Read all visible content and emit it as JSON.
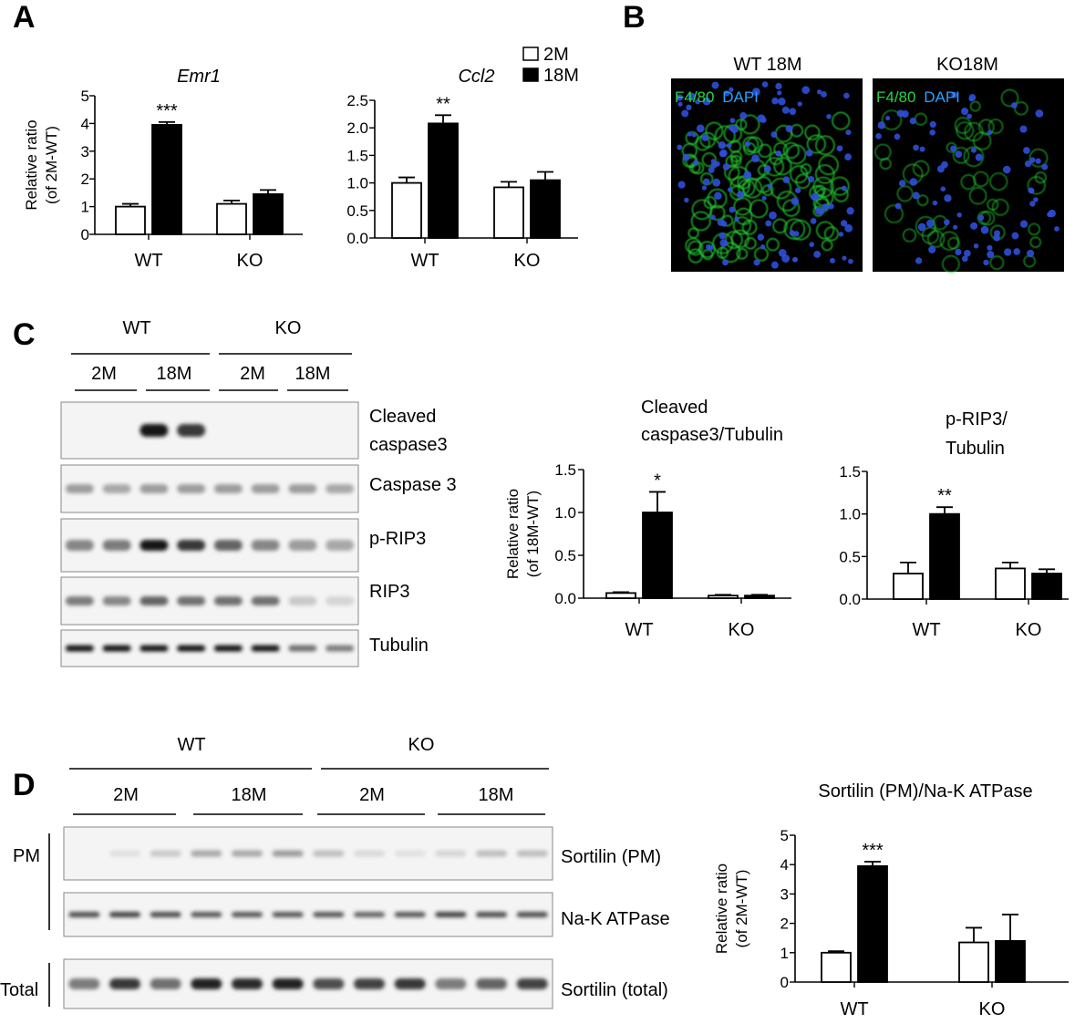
{
  "panels": {
    "a": "A",
    "b": "B",
    "c": "C",
    "d": "D"
  },
  "legend": {
    "items": [
      {
        "label": "2M",
        "fill": "#ffffff"
      },
      {
        "label": "18M",
        "fill": "#000000"
      }
    ]
  },
  "panel_b": {
    "images": [
      {
        "title": "WT 18M",
        "stain_label_green": "F4/80",
        "stain_label_blue": "DAPI"
      },
      {
        "title": "KO18M",
        "stain_label_green": "F4/80",
        "stain_label_blue": "DAPI"
      }
    ],
    "colors": {
      "green": "#22c832",
      "blue": "#2f4fd8"
    }
  },
  "blot_c": {
    "groups": [
      "WT",
      "KO"
    ],
    "timepoints": [
      "2M",
      "18M",
      "2M",
      "18M"
    ],
    "band_labels": [
      {
        "line1": "Cleaved",
        "line2": "caspase3"
      },
      {
        "line1": "Caspase 3",
        "line2": ""
      },
      {
        "line1": "p-RIP3",
        "line2": ""
      },
      {
        "line1": "RIP3",
        "line2": ""
      },
      {
        "line1": "Tubulin",
        "line2": ""
      }
    ]
  },
  "blot_d": {
    "groups": [
      "WT",
      "KO"
    ],
    "timepoints": [
      "2M",
      "18M",
      "2M",
      "18M"
    ],
    "fraction_labels": [
      "PM",
      "Total"
    ],
    "band_labels": [
      "Sortilin (PM)",
      "Na-K ATPase",
      "Sortilin (total)"
    ]
  },
  "chart_data": [
    {
      "type": "bar",
      "title": "Emr1",
      "title_line2": "",
      "categories": [
        "WT",
        "KO"
      ],
      "series": [
        {
          "name": "2M",
          "values": [
            1.0,
            1.1
          ],
          "errors": [
            0.1,
            0.12
          ]
        },
        {
          "name": "18M",
          "values": [
            3.95,
            1.45
          ],
          "errors": [
            0.1,
            0.15
          ]
        }
      ],
      "ylabel_line1": "Relative ratio",
      "ylabel_line2": "(of 2M-WT)",
      "ylim": [
        0,
        5
      ],
      "yticks": [
        "0",
        "1",
        "2",
        "3",
        "4",
        "5"
      ],
      "yvals": [
        0,
        1,
        2,
        3,
        4,
        5
      ],
      "annotations": [
        {
          "category": "WT",
          "series": "18M",
          "text": "***"
        }
      ]
    },
    {
      "type": "bar",
      "title": "Ccl2",
      "title_line2": "",
      "categories": [
        "WT",
        "KO"
      ],
      "series": [
        {
          "name": "2M",
          "values": [
            1.0,
            0.92
          ],
          "errors": [
            0.1,
            0.1
          ]
        },
        {
          "name": "18M",
          "values": [
            2.08,
            1.05
          ],
          "errors": [
            0.15,
            0.15
          ]
        }
      ],
      "ylabel_line1": "",
      "ylabel_line2": "",
      "ylim": [
        0,
        2.5
      ],
      "yticks": [
        "0.0",
        "0.5",
        "1.0",
        "1.5",
        "2.0",
        "2.5"
      ],
      "yvals": [
        0,
        0.5,
        1.0,
        1.5,
        2.0,
        2.5
      ],
      "annotations": [
        {
          "category": "WT",
          "series": "18M",
          "text": "**"
        }
      ]
    },
    {
      "type": "bar",
      "title": "Cleaved",
      "title_line2": "caspase3/Tubulin",
      "categories": [
        "WT",
        "KO"
      ],
      "series": [
        {
          "name": "2M",
          "values": [
            0.06,
            0.03
          ],
          "errors": [
            0.01,
            0.01
          ]
        },
        {
          "name": "18M",
          "values": [
            1.0,
            0.03
          ],
          "errors": [
            0.24,
            0.01
          ]
        }
      ],
      "ylabel_line1": "Relative ratio",
      "ylabel_line2": "(of 18M-WT)",
      "ylim": [
        0,
        1.5
      ],
      "yticks": [
        "0.0",
        "0.5",
        "1.0",
        "1.5"
      ],
      "yvals": [
        0,
        0.5,
        1.0,
        1.5
      ],
      "annotations": [
        {
          "category": "WT",
          "series": "18M",
          "text": "*"
        }
      ]
    },
    {
      "type": "bar",
      "title": "p-RIP3/",
      "title_line2": "Tubulin",
      "categories": [
        "WT",
        "KO"
      ],
      "series": [
        {
          "name": "2M",
          "values": [
            0.3,
            0.36
          ],
          "errors": [
            0.13,
            0.07
          ]
        },
        {
          "name": "18M",
          "values": [
            1.0,
            0.3
          ],
          "errors": [
            0.08,
            0.05
          ]
        }
      ],
      "ylabel_line1": "",
      "ylabel_line2": "",
      "ylim": [
        0,
        1.5
      ],
      "yticks": [
        "0.0",
        "0.5",
        "1.0",
        "1.5"
      ],
      "yvals": [
        0,
        0.5,
        1.0,
        1.5
      ],
      "annotations": [
        {
          "category": "WT",
          "series": "18M",
          "text": "**"
        }
      ]
    },
    {
      "type": "bar",
      "title": "Sortilin (PM)/Na-K ATPase",
      "title_line2": "",
      "categories": [
        "WT",
        "KO"
      ],
      "series": [
        {
          "name": "2M",
          "values": [
            1.0,
            1.35
          ],
          "errors": [
            0.05,
            0.5
          ]
        },
        {
          "name": "18M",
          "values": [
            3.95,
            1.4
          ],
          "errors": [
            0.15,
            0.9
          ]
        }
      ],
      "ylabel_line1": "Relative ratio",
      "ylabel_line2": "(of 2M-WT)",
      "ylim": [
        0,
        5
      ],
      "yticks": [
        "0",
        "1",
        "2",
        "3",
        "4",
        "5"
      ],
      "yvals": [
        0,
        1,
        2,
        3,
        4,
        5
      ],
      "annotations": [
        {
          "category": "WT",
          "series": "18M",
          "text": "***"
        }
      ]
    }
  ]
}
